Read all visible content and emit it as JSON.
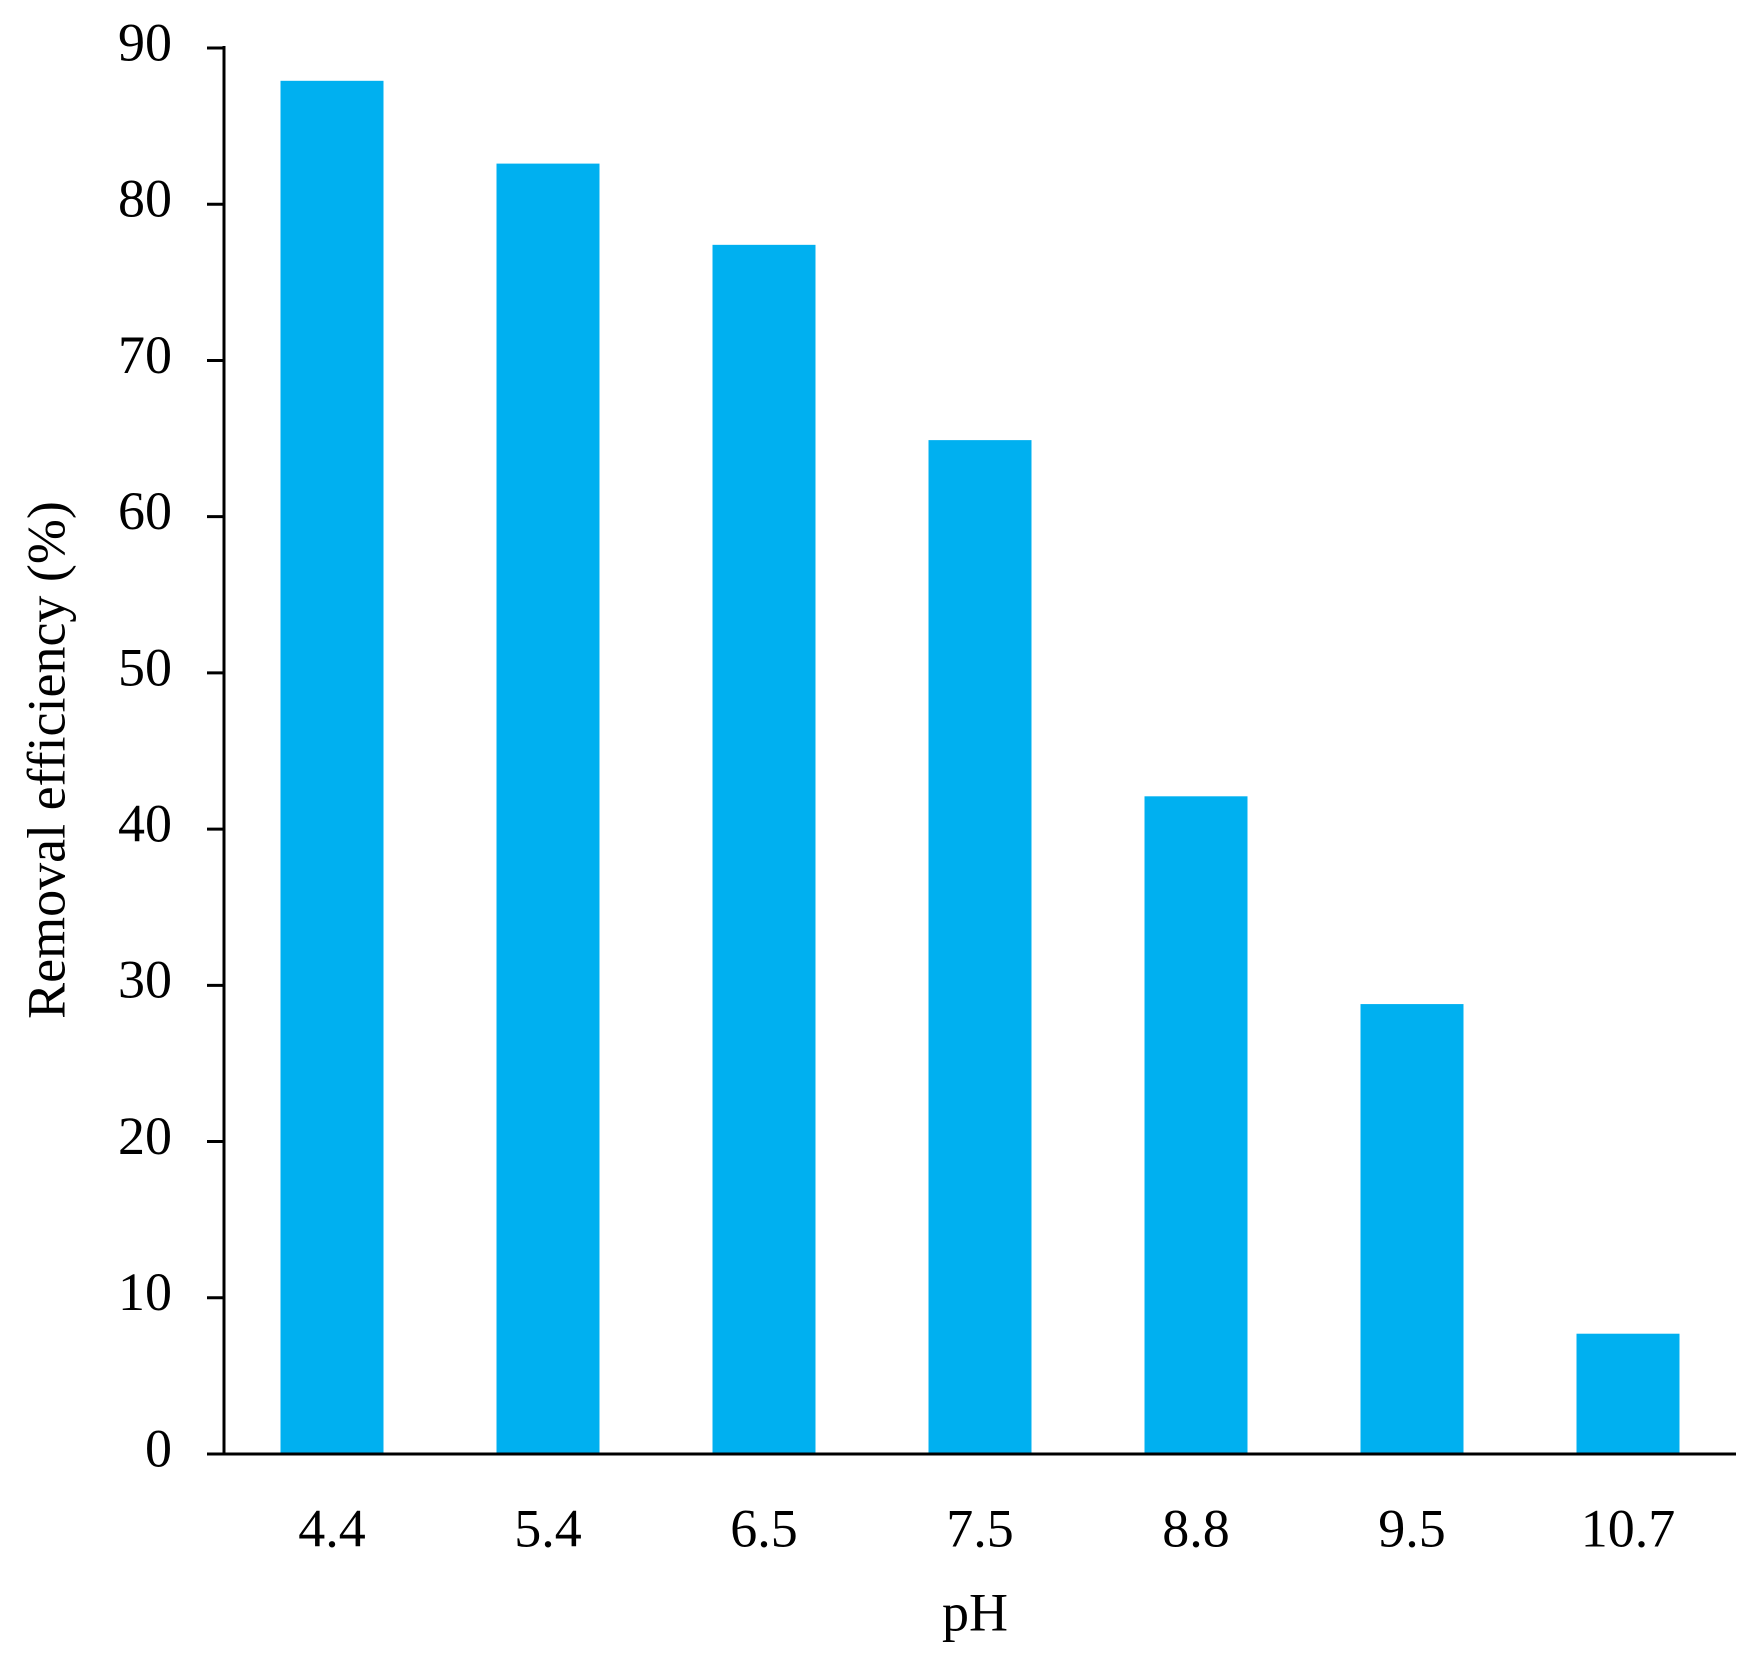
{
  "chart_data": {
    "type": "bar",
    "x_label": "pH",
    "y_label": "Removal efficiency (%)",
    "categories": [
      "4.4",
      "5.4",
      "6.5",
      "7.5",
      "8.8",
      "9.5",
      "10.7"
    ],
    "values": [
      87.9,
      82.6,
      77.4,
      64.9,
      42.1,
      28.8,
      7.7
    ],
    "color": "#00b0f0",
    "ylim": [
      0,
      90
    ],
    "yticks": [
      0,
      10,
      20,
      30,
      40,
      50,
      60,
      70,
      80,
      90
    ],
    "grid": false
  }
}
